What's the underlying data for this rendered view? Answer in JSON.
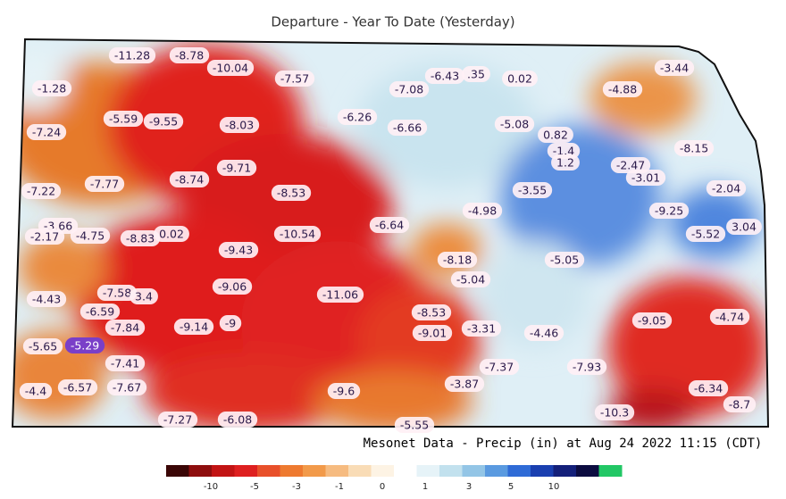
{
  "title": "Departure - Year To Date (Yesterday)",
  "stations": [
    "-11.28",
    "-8.78",
    "-10.04",
    "-7.57",
    "-1.28",
    "-7.08",
    "-6.43",
    ".35",
    "0.02",
    "-3.44",
    "-4.88",
    "-5.59",
    "-9.55",
    "-8.03",
    "-6.26",
    "-6.66",
    "-5.08",
    "0.82",
    "-1.4",
    "1.2",
    "-8.15",
    "-7.24",
    "-9.71",
    "-2.47",
    "-3.01",
    "-7.22",
    "-7.77",
    "-8.74",
    "-8.53",
    "-3.55",
    "-2.04",
    "-3.66",
    "-2.17",
    "-4.75",
    "-8.83",
    "0.02",
    "-9.43",
    "-10.54",
    "-6.64",
    "-4.98",
    "-9.25",
    "-5.52",
    "3.04",
    "-8.18",
    "-5.04",
    "-5.05",
    "-4.43",
    "-7.58",
    "3.4",
    "-9.06",
    "-11.06",
    "-6.59",
    "-7.84",
    "-9.14",
    "-9",
    "-8.53",
    "-9.01",
    "-3.31",
    "-4.46",
    "-9.05",
    "-4.74",
    "-5.65",
    "-5.29",
    "-7.41",
    "-7.37",
    "-7.93",
    "-4.4",
    "-6.57",
    "-7.67",
    "-9.6",
    "-3.87",
    "-6.34",
    "-8.7",
    "-10.3",
    "-7.27",
    "-6.08",
    "-5.55"
  ],
  "footer": "Mesonet Data - Precip (in) at Aug 24 2022 11:15 (CDT)",
  "legend": {
    "colors": [
      "#3a0606",
      "#8e0e0e",
      "#c21414",
      "#de2020",
      "#e8502a",
      "#ee7a30",
      "#f29a4a",
      "#f6bb80",
      "#f9dcb6",
      "#fdf3e4",
      "#ffffff",
      "#e6f3f8",
      "#c2e1ee",
      "#93c5e6",
      "#5a9ae0",
      "#2f6bd6",
      "#1a3fb0",
      "#14207a",
      "#0c0c40",
      "#22c765"
    ],
    "ticks": [
      "-10",
      "-5",
      "-3",
      "-1",
      "0",
      "1",
      "3",
      "5",
      "10"
    ]
  }
}
